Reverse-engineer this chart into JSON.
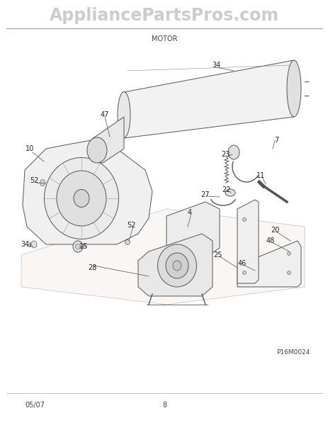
{
  "title_main": "AppliancePartsPros.com",
  "title_sub": "MOTOR",
  "footer_left": "05/07",
  "footer_center": "8",
  "footer_right": "P16M0024",
  "bg_color": "#ffffff",
  "header_bg": "#f0f0f0",
  "line_color": "#555555",
  "figsize": [
    4.64,
    6.0
  ],
  "dpi": 100,
  "labels": [
    [
      305,
      92,
      "34"
    ],
    [
      390,
      198,
      "7"
    ],
    [
      148,
      162,
      "47"
    ],
    [
      42,
      210,
      "10"
    ],
    [
      48,
      255,
      "52"
    ],
    [
      185,
      318,
      "52"
    ],
    [
      35,
      345,
      "34"
    ],
    [
      118,
      348,
      "15"
    ],
    [
      130,
      378,
      "28"
    ],
    [
      268,
      300,
      "4"
    ],
    [
      318,
      218,
      "23"
    ],
    [
      320,
      268,
      "22"
    ],
    [
      290,
      275,
      "27"
    ],
    [
      368,
      248,
      "11"
    ],
    [
      388,
      325,
      "20"
    ],
    [
      382,
      340,
      "48"
    ],
    [
      308,
      360,
      "25"
    ],
    [
      342,
      372,
      "46"
    ]
  ]
}
